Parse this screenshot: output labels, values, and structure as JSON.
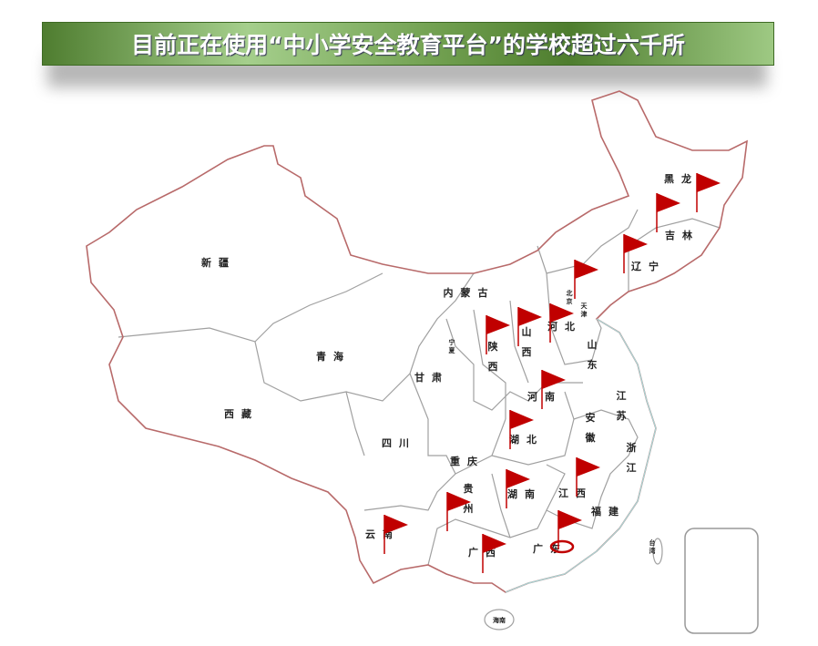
{
  "title": "目前正在使用“中小学安全教育平台”的学校超过六千所",
  "colors": {
    "title_bar": "#6f9e4e",
    "flag": "#c00000",
    "border": "#b86a6a",
    "province_border": "#9a9a9a",
    "coast": "#a8d8d8"
  },
  "provinces": [
    {
      "name": "新疆",
      "v": false
    },
    {
      "name": "西藏",
      "v": false
    },
    {
      "name": "青海",
      "v": false
    },
    {
      "name": "甘肃",
      "v": false
    },
    {
      "name": "宁夏",
      "v": true
    },
    {
      "name": "内蒙古",
      "v": false
    },
    {
      "name": "陕西",
      "v": true
    },
    {
      "name": "山西",
      "v": true
    },
    {
      "name": "河北",
      "v": false
    },
    {
      "name": "北京",
      "v": true
    },
    {
      "name": "天津",
      "v": true
    },
    {
      "name": "山东",
      "v": true
    },
    {
      "name": "河南",
      "v": false
    },
    {
      "name": "江苏",
      "v": true
    },
    {
      "name": "安徽",
      "v": true
    },
    {
      "name": "湖北",
      "v": false
    },
    {
      "name": "四川",
      "v": false
    },
    {
      "name": "重庆",
      "v": false
    },
    {
      "name": "浙江",
      "v": true
    },
    {
      "name": "贵州",
      "v": true
    },
    {
      "name": "湖南",
      "v": false
    },
    {
      "name": "江西",
      "v": false
    },
    {
      "name": "福建",
      "v": false
    },
    {
      "name": "云南",
      "v": false
    },
    {
      "name": "广西",
      "v": false
    },
    {
      "name": "广东",
      "v": false
    },
    {
      "name": "台湾",
      "v": true
    },
    {
      "name": "海南",
      "v": false
    },
    {
      "name": "黑龙",
      "v": false
    },
    {
      "name": "吉林",
      "v": false
    },
    {
      "name": "辽宁",
      "v": false
    }
  ],
  "flag_provinces": [
    "黑龙江",
    "吉林",
    "辽宁",
    "北京",
    "陕西",
    "山西",
    "河北",
    "河南",
    "湖北",
    "江西",
    "湖南",
    "贵州",
    "云南",
    "广西",
    "广东"
  ],
  "highlighted_province": "广东"
}
